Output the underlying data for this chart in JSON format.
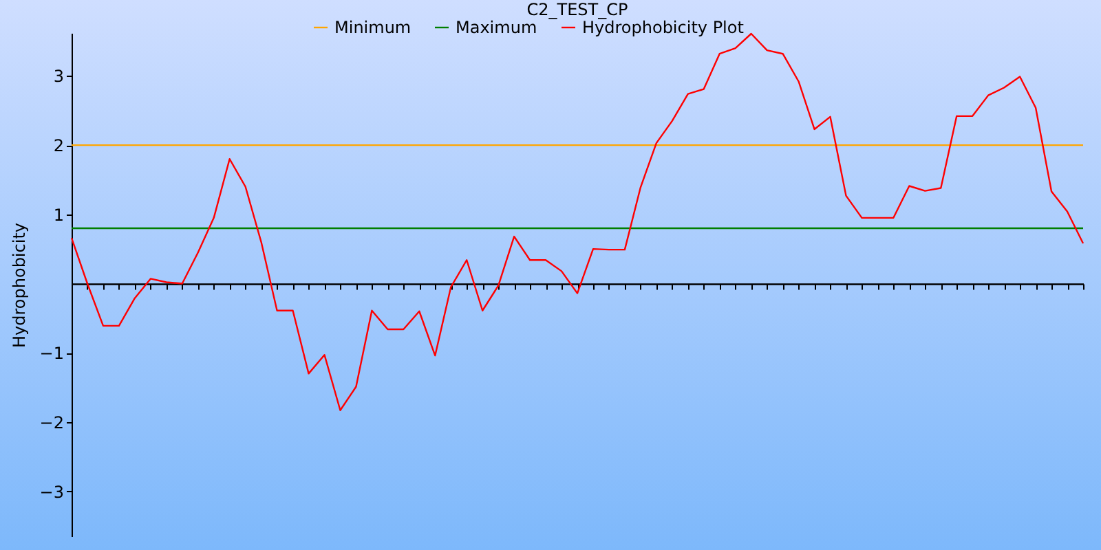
{
  "chart_data": {
    "type": "line",
    "title": "C2_TEST_CP",
    "ylabel": "Hydrophobicity",
    "categories": [
      null,
      null,
      null,
      null,
      null,
      null,
      null,
      null,
      null,
      null,
      null,
      null,
      null,
      null,
      null,
      null,
      null,
      null,
      null,
      null,
      null,
      null,
      null,
      null,
      null,
      null,
      null,
      null,
      null,
      null,
      null,
      null,
      null,
      null,
      null,
      null,
      null,
      null,
      null,
      null,
      null,
      null,
      null,
      null,
      null,
      null,
      null,
      null,
      null,
      null,
      null,
      null,
      null,
      null,
      null,
      null,
      null,
      null,
      null,
      null,
      null,
      null,
      null,
      null,
      null
    ],
    "series": [
      {
        "name": "Minimum",
        "color": "#ffa500",
        "values": [
          2,
          2,
          2,
          2,
          2,
          2,
          2,
          2,
          2,
          2,
          2,
          2,
          2,
          2,
          2,
          2,
          2,
          2,
          2,
          2,
          2,
          2,
          2,
          2,
          2,
          2,
          2,
          2,
          2,
          2,
          2,
          2,
          2,
          2,
          2,
          2,
          2,
          2,
          2,
          2,
          2,
          2,
          2,
          2,
          2,
          2,
          2,
          2,
          2,
          2,
          2,
          2,
          2,
          2,
          2,
          2,
          2,
          2,
          2,
          2,
          2,
          2,
          2,
          2,
          2
        ]
      },
      {
        "name": "Maximum",
        "color": "#007f00",
        "values": [
          0.8,
          0.8,
          0.8,
          0.8,
          0.8,
          0.8,
          0.8,
          0.8,
          0.8,
          0.8,
          0.8,
          0.8,
          0.8,
          0.8,
          0.8,
          0.8,
          0.8,
          0.8,
          0.8,
          0.8,
          0.8,
          0.8,
          0.8,
          0.8,
          0.8,
          0.8,
          0.8,
          0.8,
          0.8,
          0.8,
          0.8,
          0.8,
          0.8,
          0.8,
          0.8,
          0.8,
          0.8,
          0.8,
          0.8,
          0.8,
          0.8,
          0.8,
          0.8,
          0.8,
          0.8,
          0.8,
          0.8,
          0.8,
          0.8,
          0.8,
          0.8,
          0.8,
          0.8,
          0.8,
          0.8,
          0.8,
          0.8,
          0.8,
          0.8,
          0.8,
          0.8,
          0.8,
          0.8,
          0.8,
          0.8
        ]
      },
      {
        "name": "Hydrophobicity Plot",
        "color": "#ff0000",
        "values": [
          0.66,
          0.0,
          -0.61,
          -0.61,
          -0.21,
          0.07,
          0.02,
          0.0,
          0.45,
          0.95,
          1.8,
          1.4,
          0.6,
          -0.39,
          -0.39,
          -1.3,
          -1.03,
          -1.83,
          -1.49,
          -0.39,
          -0.66,
          -0.66,
          -0.4,
          -1.04,
          -0.05,
          0.34,
          -0.39,
          -0.03,
          0.68,
          0.34,
          0.34,
          0.18,
          -0.14,
          0.5,
          0.49,
          0.49,
          1.39,
          2.03,
          2.35,
          2.74,
          2.81,
          3.32,
          3.4,
          3.61,
          3.37,
          3.32,
          2.92,
          2.23,
          2.41,
          1.27,
          0.95,
          0.95,
          0.95,
          1.41,
          1.34,
          1.38,
          2.42,
          2.42,
          2.72,
          2.83,
          2.99,
          2.54,
          1.33,
          1.04,
          0.58
        ]
      }
    ],
    "ylim": [
      -3.65,
      3.62
    ],
    "yticks": [
      -3,
      -2,
      -1,
      1,
      2,
      3
    ],
    "legend": "top",
    "marker": "none",
    "line_style": "solid",
    "grid": false
  }
}
